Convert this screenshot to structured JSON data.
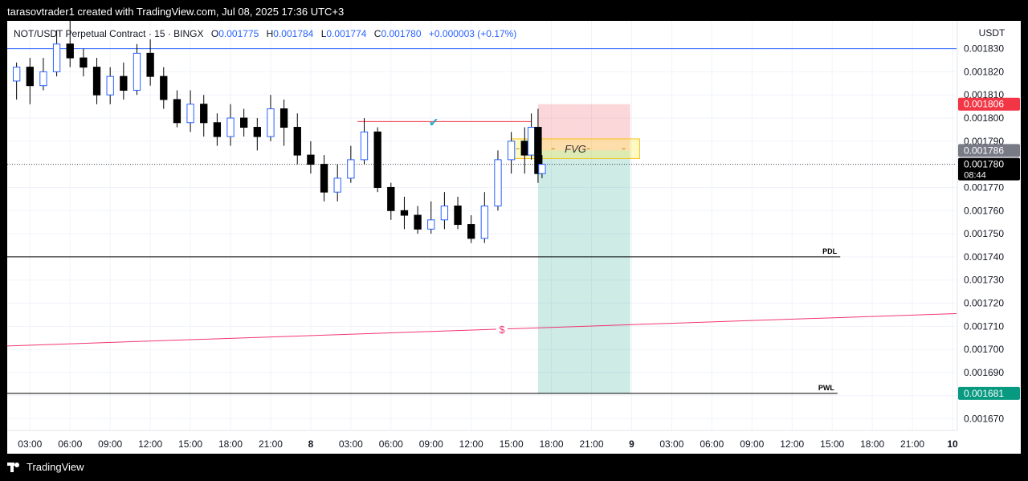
{
  "header": {
    "text": "tarasovtrader1 created with TradingView.com, Jul 08, 2025 17:36 UTC+3"
  },
  "footer": {
    "brand": "TradingView"
  },
  "legend": {
    "symbol": "NOT/USDT Perpetual Contract · 15 · BINGX",
    "o_label": "O",
    "o_value": "0.001775",
    "h_label": "H",
    "h_value": "0.001784",
    "l_label": "L",
    "l_value": "0.001774",
    "c_label": "C",
    "c_value": "0.001780",
    "change": "+0.000003 (+0.17%)"
  },
  "chart_data": {
    "type": "candlestick",
    "currency_label": "USDT",
    "ylim": [
      0.001665,
      0.001842
    ],
    "y_ticks": [
      "0.001830",
      "0.001820",
      "0.001810",
      "0.001800",
      "0.001790",
      "0.001780",
      "0.001770",
      "0.001760",
      "0.001750",
      "0.001740",
      "0.001730",
      "0.001720",
      "0.001710",
      "0.001700",
      "0.001690",
      "0.001680",
      "0.001670"
    ],
    "y_tick_values": [
      0.00183,
      0.00182,
      0.00181,
      0.0018,
      0.00179,
      0.00178,
      0.00177,
      0.00176,
      0.00175,
      0.00174,
      0.00173,
      0.00172,
      0.00171,
      0.0017,
      0.00169,
      0.00168,
      0.00167
    ],
    "x_ticks": [
      "03:00",
      "06:00",
      "09:00",
      "12:00",
      "15:00",
      "18:00",
      "21:00",
      "8",
      "03:00",
      "06:00",
      "09:00",
      "12:00",
      "15:00",
      "18:00",
      "21:00",
      "9",
      "03:00",
      "06:00",
      "09:00",
      "12:00",
      "15:00",
      "18:00",
      "21:00",
      "10"
    ],
    "x_tick_hours": [
      3,
      6,
      9,
      12,
      15,
      18,
      21,
      24,
      27,
      30,
      33,
      36,
      39,
      42,
      45,
      48,
      51,
      54,
      57,
      60,
      63,
      66,
      69,
      72
    ],
    "x_range_hours": [
      1.3,
      72.3
    ],
    "price_badges": [
      {
        "value": "0.001806",
        "price": 0.001806,
        "color": "#f23645"
      },
      {
        "value": "0.001786",
        "price": 0.001786,
        "color": "#787b86"
      },
      {
        "value": "0.001780",
        "sub": "08:44",
        "price": 0.00178,
        "color": "#000000"
      },
      {
        "value": "0.001681",
        "price": 0.001681,
        "color": "#089981"
      }
    ],
    "horizontal_lines": [
      {
        "price": 0.00183,
        "color": "#2962ff",
        "style": "solid"
      },
      {
        "price": 0.00174,
        "color": "#000000",
        "style": "solid",
        "label": "PDL",
        "end_hour": 63.6
      },
      {
        "price": 0.001681,
        "color": "#000000",
        "style": "solid",
        "label": "PWL",
        "end_hour": 63.4
      },
      {
        "price": 0.00178,
        "color": "#555555",
        "style": "dotted"
      }
    ],
    "trend_line": {
      "from": [
        1.3,
        0.0017015
      ],
      "to": [
        72.3,
        0.0017155
      ],
      "color": "#f23670",
      "label": "$",
      "label_hour": 38.3
    },
    "swing_high": {
      "from_hour": 27.5,
      "to_hour": 40.5,
      "price": 0.0017985,
      "color": "#f23645",
      "mark": "✔",
      "mark_hour": 33.2
    },
    "fvg": {
      "label": "FVG",
      "from_hour": 39.0,
      "to_hour": 48.6,
      "top": 0.001791,
      "bottom": 0.0017825
    },
    "position": {
      "entry_from": 41.0,
      "entry_to": 47.9,
      "stop": 0.001806,
      "entry": 0.001786,
      "target": 0.001681
    },
    "candles": [
      [
        2,
        0.001816,
        0.001822,
        0.001808,
        0.001824
      ],
      [
        3,
        0.001822,
        0.001814,
        0.001806,
        0.001826
      ],
      [
        4,
        0.001814,
        0.00182,
        0.001812,
        0.001826
      ],
      [
        5,
        0.00182,
        0.001832,
        0.001818,
        0.001838
      ],
      [
        6,
        0.001832,
        0.001826,
        0.001822,
        0.001842
      ],
      [
        7,
        0.001826,
        0.001822,
        0.001818,
        0.00183
      ],
      [
        8,
        0.001822,
        0.00181,
        0.001806,
        0.001826
      ],
      [
        9,
        0.00181,
        0.001818,
        0.001806,
        0.001822
      ],
      [
        10,
        0.001818,
        0.001812,
        0.001808,
        0.001824
      ],
      [
        11,
        0.001812,
        0.001828,
        0.00181,
        0.001832
      ],
      [
        12,
        0.001828,
        0.001818,
        0.001814,
        0.001834
      ],
      [
        13,
        0.001818,
        0.001808,
        0.001804,
        0.001822
      ],
      [
        14,
        0.001808,
        0.001798,
        0.001796,
        0.001812
      ],
      [
        15,
        0.001798,
        0.001806,
        0.001794,
        0.001812
      ],
      [
        16,
        0.001806,
        0.001798,
        0.001792,
        0.00181
      ],
      [
        17,
        0.001798,
        0.001792,
        0.001788,
        0.001802
      ],
      [
        18,
        0.001792,
        0.0018,
        0.001788,
        0.001806
      ],
      [
        19,
        0.0018,
        0.001796,
        0.001792,
        0.001804
      ],
      [
        20,
        0.001796,
        0.001792,
        0.001786,
        0.0018
      ],
      [
        21,
        0.001792,
        0.001804,
        0.00179,
        0.00181
      ],
      [
        22,
        0.001804,
        0.001796,
        0.001788,
        0.001808
      ],
      [
        23,
        0.001796,
        0.001784,
        0.00178,
        0.001802
      ],
      [
        24,
        0.001784,
        0.00178,
        0.001776,
        0.00179
      ],
      [
        25,
        0.00178,
        0.001768,
        0.001764,
        0.001784
      ],
      [
        26,
        0.001768,
        0.001774,
        0.001764,
        0.00178
      ],
      [
        27,
        0.001774,
        0.001782,
        0.001772,
        0.001788
      ],
      [
        28,
        0.001782,
        0.001794,
        0.00178,
        0.0018
      ],
      [
        29,
        0.001794,
        0.00177,
        0.001768,
        0.001796
      ],
      [
        30,
        0.00177,
        0.00176,
        0.001756,
        0.001772
      ],
      [
        31,
        0.00176,
        0.001758,
        0.001752,
        0.001766
      ],
      [
        32,
        0.001758,
        0.001752,
        0.00175,
        0.001762
      ],
      [
        33,
        0.001752,
        0.001756,
        0.00175,
        0.001764
      ],
      [
        34,
        0.001756,
        0.001762,
        0.001752,
        0.001768
      ],
      [
        35,
        0.001762,
        0.001754,
        0.001752,
        0.001766
      ],
      [
        36,
        0.001754,
        0.001748,
        0.001746,
        0.001758
      ],
      [
        37,
        0.001748,
        0.001762,
        0.001746,
        0.001768
      ],
      [
        38,
        0.001762,
        0.001782,
        0.00176,
        0.001786
      ],
      [
        39,
        0.001782,
        0.00179,
        0.001776,
        0.001794
      ],
      [
        40,
        0.00179,
        0.001784,
        0.001776,
        0.001796
      ],
      [
        40.5,
        0.001784,
        0.001796,
        0.001782,
        0.001802
      ],
      [
        41,
        0.001796,
        0.001776,
        0.001772,
        0.001804
      ],
      [
        41.3,
        0.001776,
        0.00178,
        0.001774,
        0.001784
      ]
    ]
  }
}
